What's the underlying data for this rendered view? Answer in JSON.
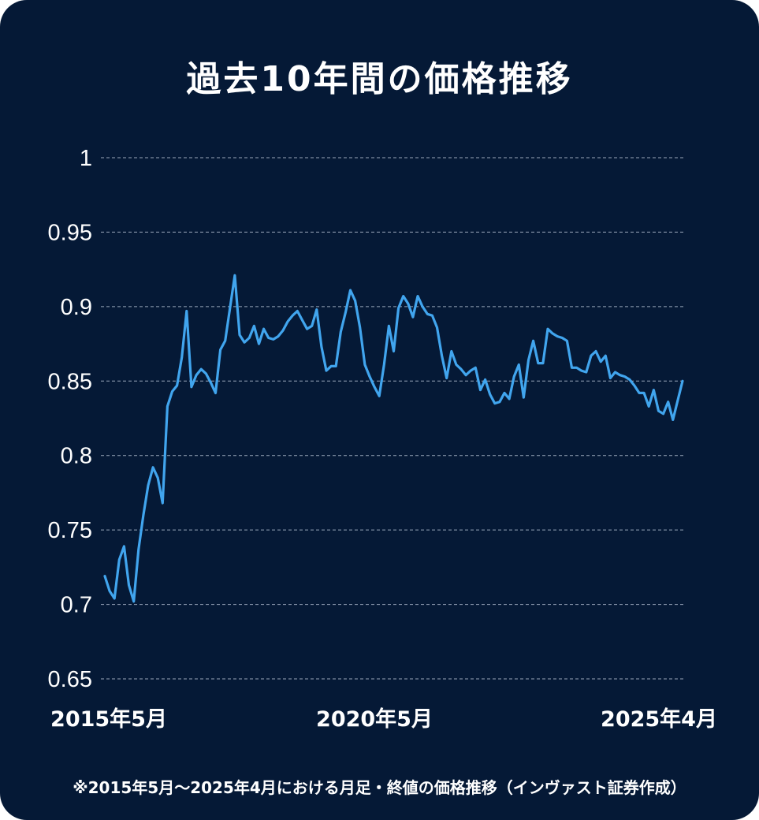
{
  "title": "過去10年間の価格推移",
  "footnote": "※2015年5月～2025年4月における月足・終値の価格推移（インヴァスト証券作成）",
  "colors": {
    "background": "#051936",
    "line": "#41a5ee",
    "grid": "#b4c0d2",
    "text": "#ffffff"
  },
  "chart_data": {
    "type": "line",
    "title": "過去10年間の価格推移",
    "xlabel": "",
    "ylabel": "",
    "ylim": [
      0.65,
      1.0
    ],
    "yticks": [
      1.0,
      0.95,
      0.9,
      0.85,
      0.8,
      0.75,
      0.7,
      0.65
    ],
    "ytick_labels": [
      "1",
      "0.95",
      "0.9",
      "0.85",
      "0.8",
      "0.75",
      "0.7",
      "0.65"
    ],
    "x_range": [
      "2015年5月",
      "2025年4月"
    ],
    "xtick_labels": [
      "2015年5月",
      "2020年5月",
      "2025年4月"
    ],
    "grid": "horizontal-dashed",
    "series": [
      {
        "values": [
          0.719,
          0.709,
          0.704,
          0.73,
          0.739,
          0.713,
          0.702,
          0.737,
          0.76,
          0.78,
          0.792,
          0.785,
          0.768,
          0.833,
          0.843,
          0.847,
          0.866,
          0.897,
          0.846,
          0.854,
          0.858,
          0.855,
          0.849,
          0.842,
          0.871,
          0.877,
          0.899,
          0.921,
          0.881,
          0.876,
          0.879,
          0.887,
          0.875,
          0.885,
          0.879,
          0.878,
          0.88,
          0.884,
          0.89,
          0.894,
          0.897,
          0.891,
          0.885,
          0.887,
          0.898,
          0.873,
          0.857,
          0.86,
          0.86,
          0.883,
          0.896,
          0.911,
          0.904,
          0.886,
          0.861,
          0.853,
          0.846,
          0.84,
          0.861,
          0.887,
          0.87,
          0.899,
          0.907,
          0.902,
          0.893,
          0.907,
          0.9,
          0.895,
          0.894,
          0.886,
          0.867,
          0.852,
          0.87,
          0.861,
          0.858,
          0.854,
          0.857,
          0.859,
          0.844,
          0.851,
          0.841,
          0.835,
          0.836,
          0.842,
          0.838,
          0.853,
          0.861,
          0.839,
          0.864,
          0.877,
          0.862,
          0.862,
          0.885,
          0.882,
          0.88,
          0.879,
          0.877,
          0.859,
          0.859,
          0.857,
          0.856,
          0.867,
          0.87,
          0.863,
          0.867,
          0.852,
          0.856,
          0.854,
          0.853,
          0.851,
          0.847,
          0.842,
          0.842,
          0.833,
          0.844,
          0.83,
          0.828,
          0.836,
          0.824,
          0.837,
          0.85
        ]
      }
    ]
  }
}
